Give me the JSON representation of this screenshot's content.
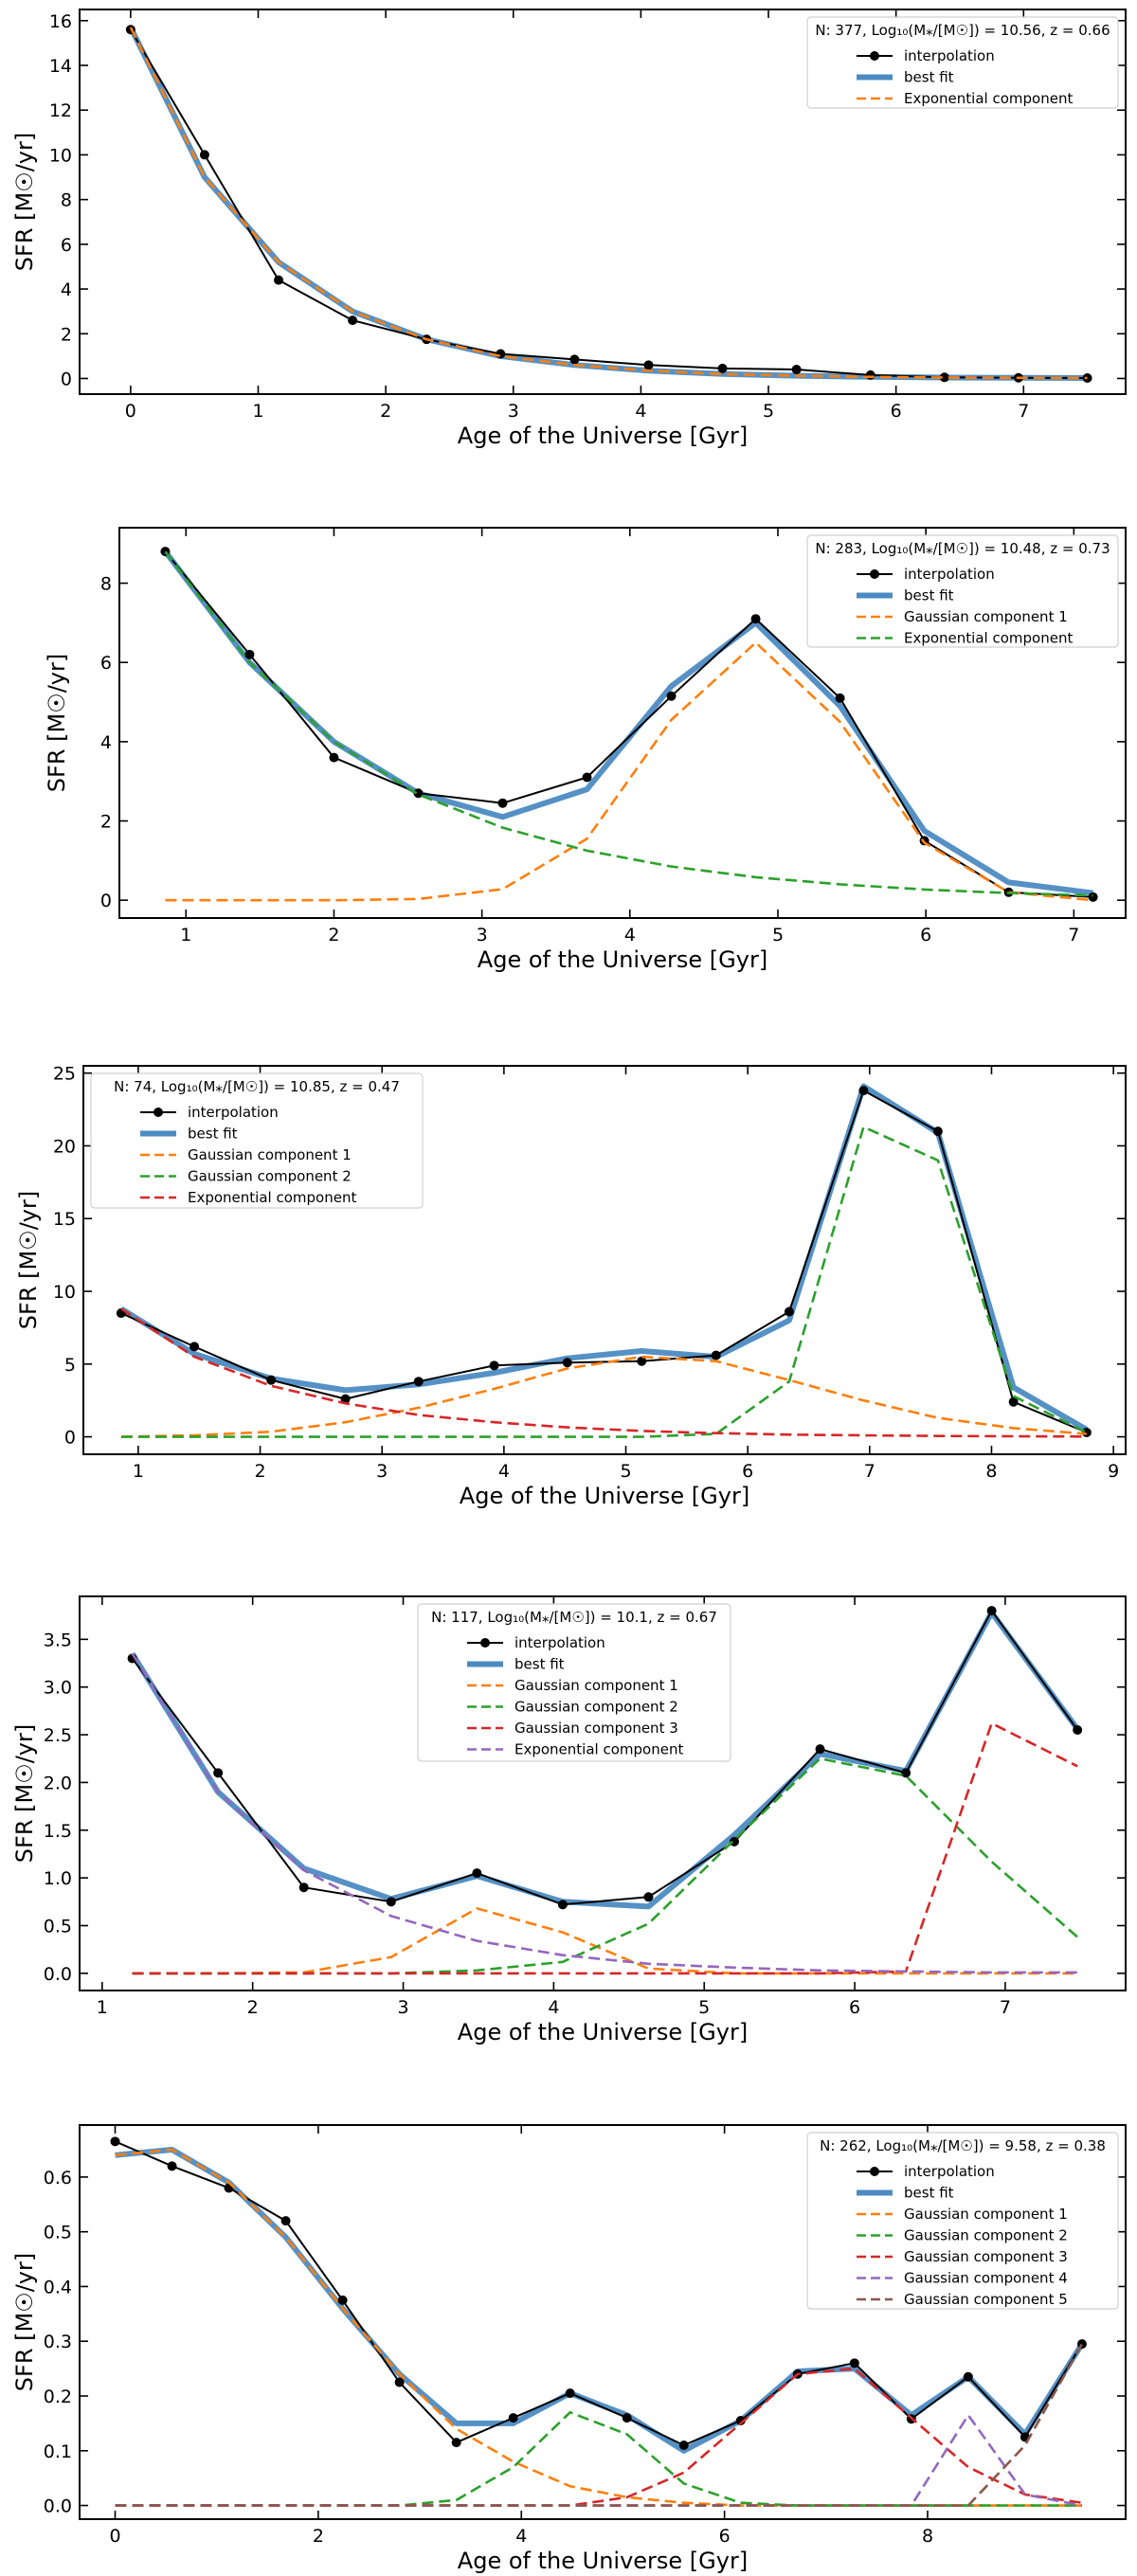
{
  "chart_data": [
    {
      "type": "line",
      "title": "",
      "xlabel": "Age of the Universe [Gyr]",
      "ylabel": "SFR [M☉/yr]",
      "xlim": [
        -0.4,
        7.8
      ],
      "ylim": [
        -0.7,
        16.5
      ],
      "xticks": [
        0,
        1,
        2,
        3,
        4,
        5,
        6,
        7
      ],
      "yticks": [
        0,
        2,
        4,
        6,
        8,
        10,
        12,
        14,
        16
      ],
      "legend_title": "N: 377, Log₁₀(M⁎/[M☉]) = 10.56, z = 0.66",
      "legend_loc": "upper right",
      "x": [
        0,
        0.58,
        1.16,
        1.74,
        2.32,
        2.9,
        3.48,
        4.06,
        4.64,
        5.22,
        5.8,
        6.38,
        6.96,
        7.5
      ],
      "series": [
        {
          "name": "interpolation",
          "style": "interp",
          "values": [
            15.6,
            10.0,
            4.4,
            2.6,
            1.75,
            1.1,
            0.85,
            0.6,
            0.45,
            0.4,
            0.15,
            0.05,
            0.03,
            0.02
          ]
        },
        {
          "name": "best fit",
          "style": "fit",
          "values": [
            15.7,
            9.0,
            5.2,
            3.0,
            1.75,
            1.0,
            0.6,
            0.35,
            0.2,
            0.12,
            0.07,
            0.04,
            0.03,
            0.02
          ]
        },
        {
          "name": "Exponential component",
          "style": "dash",
          "color": "#ff7f0e",
          "values": [
            15.7,
            9.0,
            5.2,
            3.0,
            1.75,
            1.0,
            0.6,
            0.35,
            0.2,
            0.12,
            0.07,
            0.04,
            0.03,
            0.02
          ]
        }
      ]
    },
    {
      "type": "line",
      "title": "",
      "xlabel": "Age of the Universe [Gyr]",
      "ylabel": "SFR [M☉/yr]",
      "xlim": [
        0.55,
        7.35
      ],
      "ylim": [
        -0.45,
        9.4
      ],
      "xticks": [
        1,
        2,
        3,
        4,
        5,
        6,
        7
      ],
      "yticks": [
        0,
        2,
        4,
        6,
        8
      ],
      "legend_title": "N: 283, Log₁₀(M⁎/[M☉]) = 10.48, z = 0.73",
      "legend_loc": "upper right",
      "x": [
        0.86,
        1.43,
        2.0,
        2.57,
        3.14,
        3.71,
        4.28,
        4.85,
        5.42,
        5.99,
        6.56,
        7.13
      ],
      "series": [
        {
          "name": "interpolation",
          "style": "interp",
          "values": [
            8.8,
            6.2,
            3.6,
            2.7,
            2.45,
            3.1,
            5.15,
            7.1,
            5.1,
            1.5,
            0.2,
            0.08
          ]
        },
        {
          "name": "best fit",
          "style": "fit",
          "values": [
            8.8,
            6.0,
            4.0,
            2.7,
            2.1,
            2.8,
            5.4,
            7.0,
            4.9,
            1.75,
            0.45,
            0.18
          ]
        },
        {
          "name": "Gaussian component 1",
          "style": "dash",
          "color": "#ff7f0e",
          "values": [
            0.0,
            0.0,
            0.0,
            0.03,
            0.28,
            1.55,
            4.55,
            6.5,
            4.5,
            1.45,
            0.2,
            0.0
          ]
        },
        {
          "name": "Exponential component",
          "style": "dash",
          "color": "#2ca02c",
          "values": [
            8.8,
            6.0,
            4.0,
            2.67,
            1.83,
            1.25,
            0.85,
            0.58,
            0.4,
            0.27,
            0.18,
            0.12
          ]
        }
      ]
    },
    {
      "type": "line",
      "title": "",
      "xlabel": "Age of the Universe [Gyr]",
      "ylabel": "SFR [M☉/yr]",
      "xlim": [
        0.55,
        9.1
      ],
      "ylim": [
        -1.2,
        25.5
      ],
      "xticks": [
        1,
        2,
        3,
        4,
        5,
        6,
        7,
        8,
        9
      ],
      "yticks": [
        0,
        5,
        10,
        15,
        20,
        25
      ],
      "legend_title": "N: 74, Log₁₀(M⁎/[M☉]) = 10.85, z = 0.47",
      "legend_loc": "upper left",
      "x": [
        0.86,
        1.46,
        2.09,
        2.7,
        3.3,
        3.92,
        4.52,
        5.13,
        5.74,
        6.34,
        6.95,
        7.56,
        8.18,
        8.78
      ],
      "series": [
        {
          "name": "interpolation",
          "style": "interp",
          "values": [
            8.5,
            6.2,
            3.9,
            2.6,
            3.8,
            4.9,
            5.1,
            5.2,
            5.6,
            8.6,
            23.8,
            21.0,
            2.4,
            0.3
          ]
        },
        {
          "name": "best fit",
          "style": "fit",
          "values": [
            8.8,
            5.7,
            4.0,
            3.2,
            3.6,
            4.4,
            5.4,
            5.9,
            5.5,
            8.0,
            24.1,
            20.9,
            3.4,
            0.5
          ]
        },
        {
          "name": "Gaussian component 1",
          "style": "dash",
          "color": "#ff7f0e",
          "values": [
            0.0,
            0.1,
            0.35,
            1.0,
            2.0,
            3.3,
            4.7,
            5.5,
            5.2,
            3.9,
            2.5,
            1.3,
            0.6,
            0.2
          ]
        },
        {
          "name": "Gaussian component 2",
          "style": "dash",
          "color": "#2ca02c",
          "values": [
            0.0,
            0.0,
            0.0,
            0.0,
            0.0,
            0.0,
            0.0,
            0.0,
            0.2,
            3.8,
            21.3,
            19.0,
            2.8,
            0.3
          ]
        },
        {
          "name": "Exponential component",
          "style": "dash",
          "color": "#d62728",
          "values": [
            8.8,
            5.5,
            3.5,
            2.3,
            1.5,
            1.0,
            0.65,
            0.4,
            0.25,
            0.15,
            0.1,
            0.06,
            0.04,
            0.02
          ]
        }
      ]
    },
    {
      "type": "line",
      "title": "",
      "xlabel": "Age of the Universe [Gyr]",
      "ylabel": "SFR [M☉/yr]",
      "xlim": [
        0.85,
        7.8
      ],
      "ylim": [
        -0.18,
        3.95
      ],
      "xticks": [
        1,
        2,
        3,
        4,
        5,
        6,
        7
      ],
      "yticks": [
        0.0,
        0.5,
        1.0,
        1.5,
        2.0,
        2.5,
        3.0,
        3.5
      ],
      "ytick_labels": [
        "0.0",
        "0.5",
        "1.0",
        "1.5",
        "2.0",
        "2.5",
        "3.0",
        "3.5"
      ],
      "legend_title": "N: 117, Log₁₀(M⁎/[M☉]) = 10.1, z = 0.67",
      "legend_loc": "upper center",
      "x": [
        1.2,
        1.77,
        2.34,
        2.92,
        3.49,
        4.06,
        4.63,
        5.2,
        5.77,
        6.34,
        6.91,
        7.48
      ],
      "series": [
        {
          "name": "interpolation",
          "style": "interp",
          "values": [
            3.3,
            2.1,
            0.9,
            0.75,
            1.05,
            0.72,
            0.8,
            1.38,
            2.35,
            2.1,
            3.8,
            2.55
          ]
        },
        {
          "name": "best fit",
          "style": "fit",
          "values": [
            3.35,
            1.9,
            1.1,
            0.78,
            1.02,
            0.75,
            0.7,
            1.45,
            2.3,
            2.12,
            3.78,
            2.56
          ]
        },
        {
          "name": "Gaussian component 1",
          "style": "dash",
          "color": "#ff7f0e",
          "values": [
            0.0,
            0.0,
            0.01,
            0.17,
            0.68,
            0.43,
            0.05,
            0.0,
            0.0,
            0.0,
            0.0,
            0.0
          ]
        },
        {
          "name": "Gaussian component 2",
          "style": "dash",
          "color": "#2ca02c",
          "values": [
            0.0,
            0.0,
            0.0,
            0.0,
            0.03,
            0.12,
            0.52,
            1.4,
            2.25,
            2.07,
            1.17,
            0.38
          ]
        },
        {
          "name": "Gaussian component 3",
          "style": "dash",
          "color": "#d62728",
          "values": [
            0.0,
            0.0,
            0.0,
            0.0,
            0.0,
            0.0,
            0.0,
            0.0,
            0.0,
            0.02,
            2.62,
            2.17
          ]
        },
        {
          "name": "Exponential component",
          "style": "dash",
          "color": "#9467bd",
          "values": [
            3.35,
            1.9,
            1.08,
            0.6,
            0.34,
            0.19,
            0.1,
            0.06,
            0.03,
            0.02,
            0.01,
            0.01
          ]
        }
      ]
    },
    {
      "type": "line",
      "title": "",
      "xlabel": "Age of the Universe [Gyr]",
      "ylabel": "SFR [M☉/yr]",
      "xlim": [
        -0.35,
        9.95
      ],
      "ylim": [
        -0.025,
        0.695
      ],
      "xticks": [
        0,
        2,
        4,
        6,
        8
      ],
      "yticks": [
        0.0,
        0.1,
        0.2,
        0.3,
        0.4,
        0.5,
        0.6
      ],
      "ytick_labels": [
        "0.0",
        "0.1",
        "0.2",
        "0.3",
        "0.4",
        "0.5",
        "0.6"
      ],
      "legend_title": "N: 262, Log₁₀(M⁎/[M☉]) = 9.58, z = 0.38",
      "legend_loc": "upper right",
      "x": [
        0,
        0.56,
        1.12,
        1.68,
        2.24,
        2.8,
        3.36,
        3.92,
        4.48,
        5.04,
        5.6,
        6.16,
        6.72,
        7.28,
        7.84,
        8.4,
        8.96,
        9.52
      ],
      "series": [
        {
          "name": "interpolation",
          "style": "interp",
          "values": [
            0.665,
            0.62,
            0.58,
            0.52,
            0.375,
            0.225,
            0.115,
            0.16,
            0.205,
            0.16,
            0.11,
            0.155,
            0.24,
            0.26,
            0.158,
            0.235,
            0.125,
            0.295
          ]
        },
        {
          "name": "best fit",
          "style": "fit",
          "values": [
            0.64,
            0.65,
            0.59,
            0.49,
            0.36,
            0.24,
            0.15,
            0.15,
            0.205,
            0.165,
            0.1,
            0.155,
            0.245,
            0.25,
            0.165,
            0.235,
            0.13,
            0.295
          ]
        },
        {
          "name": "Gaussian component 1",
          "style": "dash",
          "color": "#ff7f0e",
          "values": [
            0.64,
            0.65,
            0.59,
            0.49,
            0.36,
            0.24,
            0.14,
            0.08,
            0.035,
            0.015,
            0.005,
            0.0,
            0.0,
            0.0,
            0.0,
            0.0,
            0.0,
            0.0
          ]
        },
        {
          "name": "Gaussian component 2",
          "style": "dash",
          "color": "#2ca02c",
          "values": [
            0.0,
            0.0,
            0.0,
            0.0,
            0.0,
            0.0,
            0.01,
            0.07,
            0.17,
            0.13,
            0.04,
            0.005,
            0.0,
            0.0,
            0.0,
            0.0,
            0.0,
            0.0
          ]
        },
        {
          "name": "Gaussian component 3",
          "style": "dash",
          "color": "#d62728",
          "values": [
            0.0,
            0.0,
            0.0,
            0.0,
            0.0,
            0.0,
            0.0,
            0.0,
            0.0,
            0.015,
            0.06,
            0.15,
            0.24,
            0.25,
            0.16,
            0.07,
            0.02,
            0.005
          ]
        },
        {
          "name": "Gaussian component 4",
          "style": "dash",
          "color": "#9467bd",
          "values": [
            0.0,
            0.0,
            0.0,
            0.0,
            0.0,
            0.0,
            0.0,
            0.0,
            0.0,
            0.0,
            0.0,
            0.0,
            0.0,
            0.0,
            0.0,
            0.165,
            0.02,
            0.0
          ]
        },
        {
          "name": "Gaussian component 5",
          "style": "dash",
          "color": "#8c564b",
          "values": [
            0.0,
            0.0,
            0.0,
            0.0,
            0.0,
            0.0,
            0.0,
            0.0,
            0.0,
            0.0,
            0.0,
            0.0,
            0.0,
            0.0,
            0.0,
            0.0,
            0.11,
            0.295
          ]
        }
      ]
    }
  ],
  "colors": {
    "interpolation": "#000000",
    "best_fit": "#4c8bc2",
    "orange": "#ff7f0e",
    "green": "#2ca02c",
    "red": "#d62728",
    "purple": "#9467bd",
    "brown": "#8c564b"
  }
}
